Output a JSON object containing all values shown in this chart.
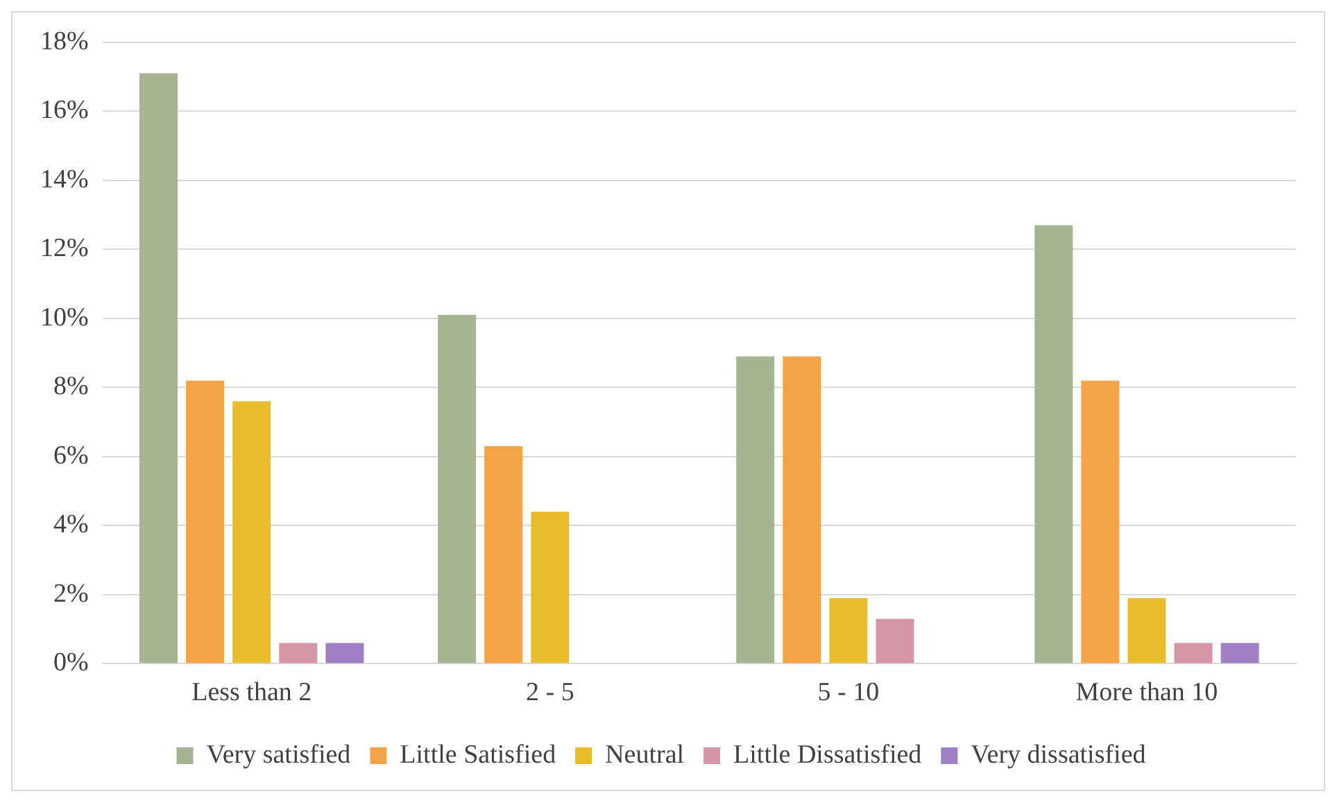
{
  "chart_data": {
    "type": "bar",
    "categories": [
      "Less than 2",
      "2 - 5",
      "5 - 10",
      "More than 10"
    ],
    "series": [
      {
        "name": "Very satisfied",
        "color": "#a5b592",
        "values": [
          17.1,
          10.1,
          8.9,
          12.7
        ]
      },
      {
        "name": "Little Satisfied",
        "color": "#f3a447",
        "values": [
          8.2,
          6.3,
          8.9,
          8.2
        ]
      },
      {
        "name": "Neutral",
        "color": "#e8bc2a",
        "values": [
          7.6,
          4.4,
          1.9,
          1.9
        ]
      },
      {
        "name": "Little Dissatisfied",
        "color": "#d597a7",
        "values": [
          0.6,
          0,
          1.3,
          0.6
        ]
      },
      {
        "name": "Very dissatisfied",
        "color": "#9e7fc6",
        "values": [
          0.6,
          0,
          0,
          0.6
        ]
      }
    ],
    "ylim": [
      0,
      18
    ],
    "yticks": [
      {
        "value": 0,
        "label": "0%"
      },
      {
        "value": 2,
        "label": "2%"
      },
      {
        "value": 4,
        "label": "4%"
      },
      {
        "value": 6,
        "label": "6%"
      },
      {
        "value": 8,
        "label": "8%"
      },
      {
        "value": 10,
        "label": "10%"
      },
      {
        "value": 12,
        "label": "12%"
      },
      {
        "value": 14,
        "label": "14%"
      },
      {
        "value": 16,
        "label": "16%"
      },
      {
        "value": 18,
        "label": "18%"
      }
    ],
    "grid": "y",
    "legend": "bottom"
  }
}
